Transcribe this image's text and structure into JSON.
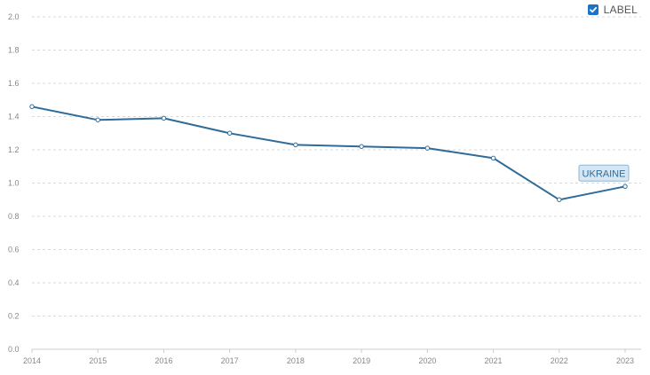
{
  "legend_toggle": {
    "label": "LABEL",
    "checked": true,
    "color": "#1a73c9"
  },
  "chart_data": {
    "type": "line",
    "title": "",
    "xlabel": "",
    "ylabel": "",
    "x": [
      "2014",
      "2015",
      "2016",
      "2017",
      "2018",
      "2019",
      "2020",
      "2021",
      "2022",
      "2023"
    ],
    "ylim": [
      0,
      2.0
    ],
    "y_ticks": [
      "0.0",
      "0.2",
      "0.4",
      "0.6",
      "0.8",
      "1.0",
      "1.2",
      "1.4",
      "1.6",
      "1.8",
      "2.0"
    ],
    "grid": true,
    "series": [
      {
        "name": "UKRAINE",
        "color": "#2f6c98",
        "values": [
          1.46,
          1.38,
          1.39,
          1.3,
          1.23,
          1.22,
          1.21,
          1.15,
          0.9,
          0.98
        ]
      }
    ]
  }
}
